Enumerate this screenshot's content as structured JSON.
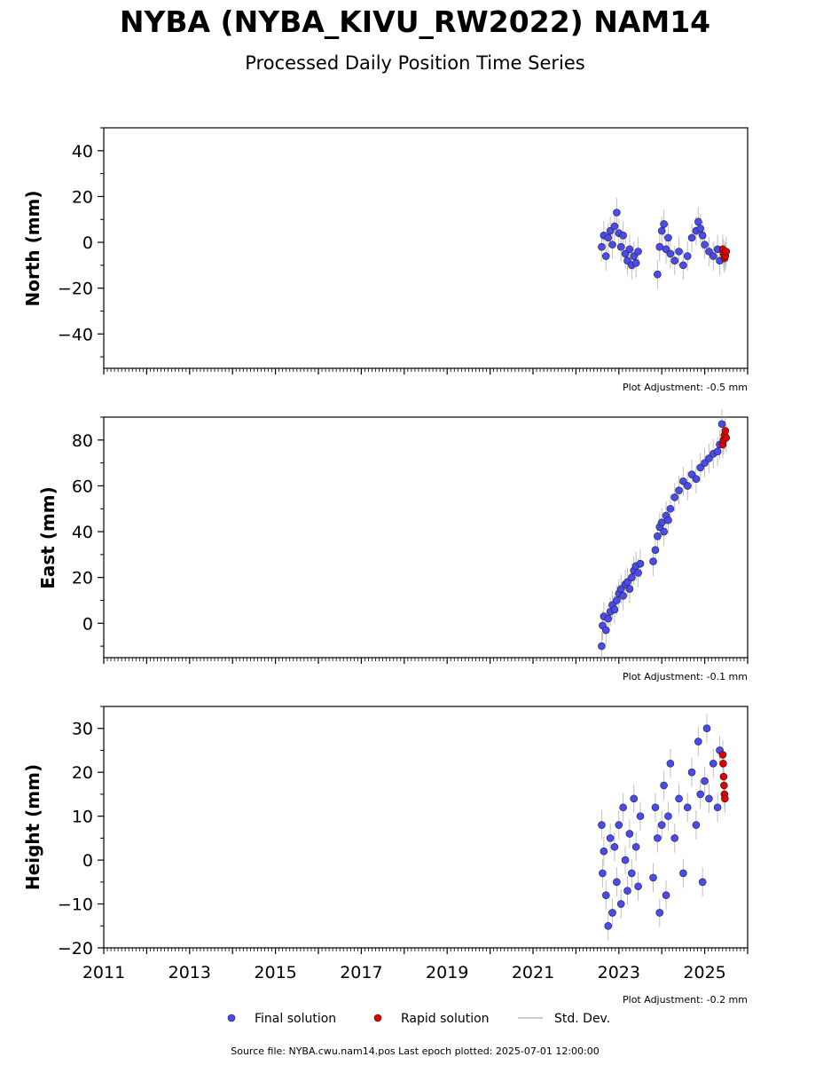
{
  "title": "NYBA (NYBA_KIVU_RW2022) NAM14",
  "subtitle": "Processed Daily Position Time Series",
  "footer": "Source file: NYBA.cwu.nam14.pos  Last epoch plotted: 2025-07-01 12:00:00",
  "legend": {
    "final": "Final solution",
    "rapid": "Rapid solution",
    "std": "Std. Dev."
  },
  "colors": {
    "final": "#4a4af0",
    "rapid": "#e00000",
    "std": "#b0b0b0",
    "stroke": "#222222"
  },
  "chart_data": [
    {
      "type": "scatter",
      "id": "north",
      "ylabel": "North (mm)",
      "adjustment": "Plot Adjustment: -0.5 mm",
      "xlim": [
        2011,
        2026
      ],
      "ylim": [
        -55,
        50
      ],
      "yticks": [
        -40,
        -20,
        0,
        20,
        40
      ],
      "ytick_labels": [
        "−40",
        "−20",
        "0",
        "20",
        "40"
      ],
      "series": [
        {
          "kind": "final",
          "points": [
            [
              2022.6,
              -2
            ],
            [
              2022.65,
              3
            ],
            [
              2022.7,
              -6
            ],
            [
              2022.75,
              2
            ],
            [
              2022.8,
              5
            ],
            [
              2022.85,
              -1
            ],
            [
              2022.9,
              7
            ],
            [
              2022.95,
              13
            ],
            [
              2023.0,
              4
            ],
            [
              2023.05,
              -2
            ],
            [
              2023.1,
              3
            ],
            [
              2023.15,
              -5
            ],
            [
              2023.2,
              -8
            ],
            [
              2023.25,
              -3
            ],
            [
              2023.3,
              -10
            ],
            [
              2023.35,
              -6
            ],
            [
              2023.4,
              -9
            ],
            [
              2023.45,
              -4
            ],
            [
              2023.9,
              -14
            ],
            [
              2023.95,
              -2
            ],
            [
              2024.0,
              5
            ],
            [
              2024.05,
              8
            ],
            [
              2024.1,
              -3
            ],
            [
              2024.15,
              2
            ],
            [
              2024.2,
              -5
            ],
            [
              2024.3,
              -8
            ],
            [
              2024.4,
              -4
            ],
            [
              2024.5,
              -10
            ],
            [
              2024.6,
              -6
            ],
            [
              2024.7,
              2
            ],
            [
              2024.8,
              5
            ],
            [
              2024.85,
              9
            ],
            [
              2024.9,
              6
            ],
            [
              2024.95,
              3
            ],
            [
              2025.0,
              -1
            ],
            [
              2025.1,
              -4
            ],
            [
              2025.2,
              -6
            ],
            [
              2025.3,
              -3
            ],
            [
              2025.35,
              -8
            ]
          ]
        },
        {
          "kind": "rapid",
          "points": [
            [
              2025.42,
              -3
            ],
            [
              2025.44,
              -5
            ],
            [
              2025.46,
              -7
            ],
            [
              2025.48,
              -6
            ],
            [
              2025.5,
              -4
            ]
          ]
        }
      ]
    },
    {
      "type": "scatter",
      "id": "east",
      "ylabel": "East (mm)",
      "adjustment": "Plot Adjustment: -0.1 mm",
      "xlim": [
        2011,
        2026
      ],
      "ylim": [
        -15,
        90
      ],
      "yticks": [
        0,
        20,
        40,
        60,
        80
      ],
      "ytick_labels": [
        "0",
        "20",
        "40",
        "60",
        "80"
      ],
      "series": [
        {
          "kind": "final",
          "points": [
            [
              2022.6,
              -10
            ],
            [
              2022.62,
              -1
            ],
            [
              2022.65,
              3
            ],
            [
              2022.7,
              -3
            ],
            [
              2022.75,
              2
            ],
            [
              2022.8,
              5
            ],
            [
              2022.85,
              8
            ],
            [
              2022.9,
              6
            ],
            [
              2022.95,
              10
            ],
            [
              2023.0,
              13
            ],
            [
              2023.05,
              15
            ],
            [
              2023.1,
              12
            ],
            [
              2023.15,
              17
            ],
            [
              2023.2,
              18
            ],
            [
              2023.25,
              15
            ],
            [
              2023.3,
              20
            ],
            [
              2023.35,
              23
            ],
            [
              2023.4,
              25
            ],
            [
              2023.45,
              22
            ],
            [
              2023.5,
              26
            ],
            [
              2023.8,
              27
            ],
            [
              2023.85,
              32
            ],
            [
              2023.9,
              38
            ],
            [
              2023.95,
              42
            ],
            [
              2024.0,
              44
            ],
            [
              2024.05,
              40
            ],
            [
              2024.1,
              47
            ],
            [
              2024.15,
              45
            ],
            [
              2024.2,
              50
            ],
            [
              2024.3,
              55
            ],
            [
              2024.4,
              58
            ],
            [
              2024.5,
              62
            ],
            [
              2024.6,
              60
            ],
            [
              2024.7,
              65
            ],
            [
              2024.8,
              63
            ],
            [
              2024.9,
              68
            ],
            [
              2025.0,
              70
            ],
            [
              2025.1,
              72
            ],
            [
              2025.2,
              74
            ],
            [
              2025.3,
              75
            ],
            [
              2025.35,
              78
            ],
            [
              2025.4,
              87
            ]
          ]
        },
        {
          "kind": "rapid",
          "points": [
            [
              2025.42,
              78
            ],
            [
              2025.44,
              80
            ],
            [
              2025.46,
              82
            ],
            [
              2025.48,
              84
            ],
            [
              2025.5,
              81
            ]
          ]
        }
      ]
    },
    {
      "type": "scatter",
      "id": "height",
      "ylabel": "Height (mm)",
      "adjustment": "Plot Adjustment: -0.2 mm",
      "xlim": [
        2011,
        2026
      ],
      "ylim": [
        -20,
        35
      ],
      "yticks": [
        -20,
        -10,
        0,
        10,
        20,
        30
      ],
      "ytick_labels": [
        "−20",
        "−10",
        "0",
        "10",
        "20",
        "30"
      ],
      "xticks": [
        2011,
        2013,
        2015,
        2017,
        2019,
        2021,
        2023,
        2025
      ],
      "xtick_labels": [
        "2011",
        "2013",
        "2015",
        "2017",
        "2019",
        "2021",
        "2023",
        "2025"
      ],
      "series": [
        {
          "kind": "final",
          "points": [
            [
              2022.6,
              8
            ],
            [
              2022.62,
              -3
            ],
            [
              2022.65,
              2
            ],
            [
              2022.7,
              -8
            ],
            [
              2022.75,
              -15
            ],
            [
              2022.8,
              5
            ],
            [
              2022.85,
              -12
            ],
            [
              2022.9,
              3
            ],
            [
              2022.95,
              -5
            ],
            [
              2023.0,
              8
            ],
            [
              2023.05,
              -10
            ],
            [
              2023.1,
              12
            ],
            [
              2023.15,
              0
            ],
            [
              2023.2,
              -7
            ],
            [
              2023.25,
              6
            ],
            [
              2023.3,
              -3
            ],
            [
              2023.35,
              14
            ],
            [
              2023.4,
              3
            ],
            [
              2023.45,
              -6
            ],
            [
              2023.5,
              10
            ],
            [
              2023.8,
              -4
            ],
            [
              2023.85,
              12
            ],
            [
              2023.9,
              5
            ],
            [
              2023.95,
              -12
            ],
            [
              2024.0,
              8
            ],
            [
              2024.05,
              17
            ],
            [
              2024.1,
              -8
            ],
            [
              2024.15,
              10
            ],
            [
              2024.2,
              22
            ],
            [
              2024.3,
              5
            ],
            [
              2024.4,
              14
            ],
            [
              2024.5,
              -3
            ],
            [
              2024.6,
              12
            ],
            [
              2024.7,
              20
            ],
            [
              2024.8,
              8
            ],
            [
              2024.85,
              27
            ],
            [
              2024.9,
              15
            ],
            [
              2024.95,
              -5
            ],
            [
              2025.0,
              18
            ],
            [
              2025.05,
              30
            ],
            [
              2025.1,
              14
            ],
            [
              2025.2,
              22
            ],
            [
              2025.3,
              12
            ],
            [
              2025.35,
              25
            ]
          ]
        },
        {
          "kind": "rapid",
          "points": [
            [
              2025.42,
              24
            ],
            [
              2025.43,
              22
            ],
            [
              2025.44,
              19
            ],
            [
              2025.45,
              17
            ],
            [
              2025.46,
              15
            ],
            [
              2025.47,
              14
            ]
          ]
        }
      ]
    }
  ]
}
